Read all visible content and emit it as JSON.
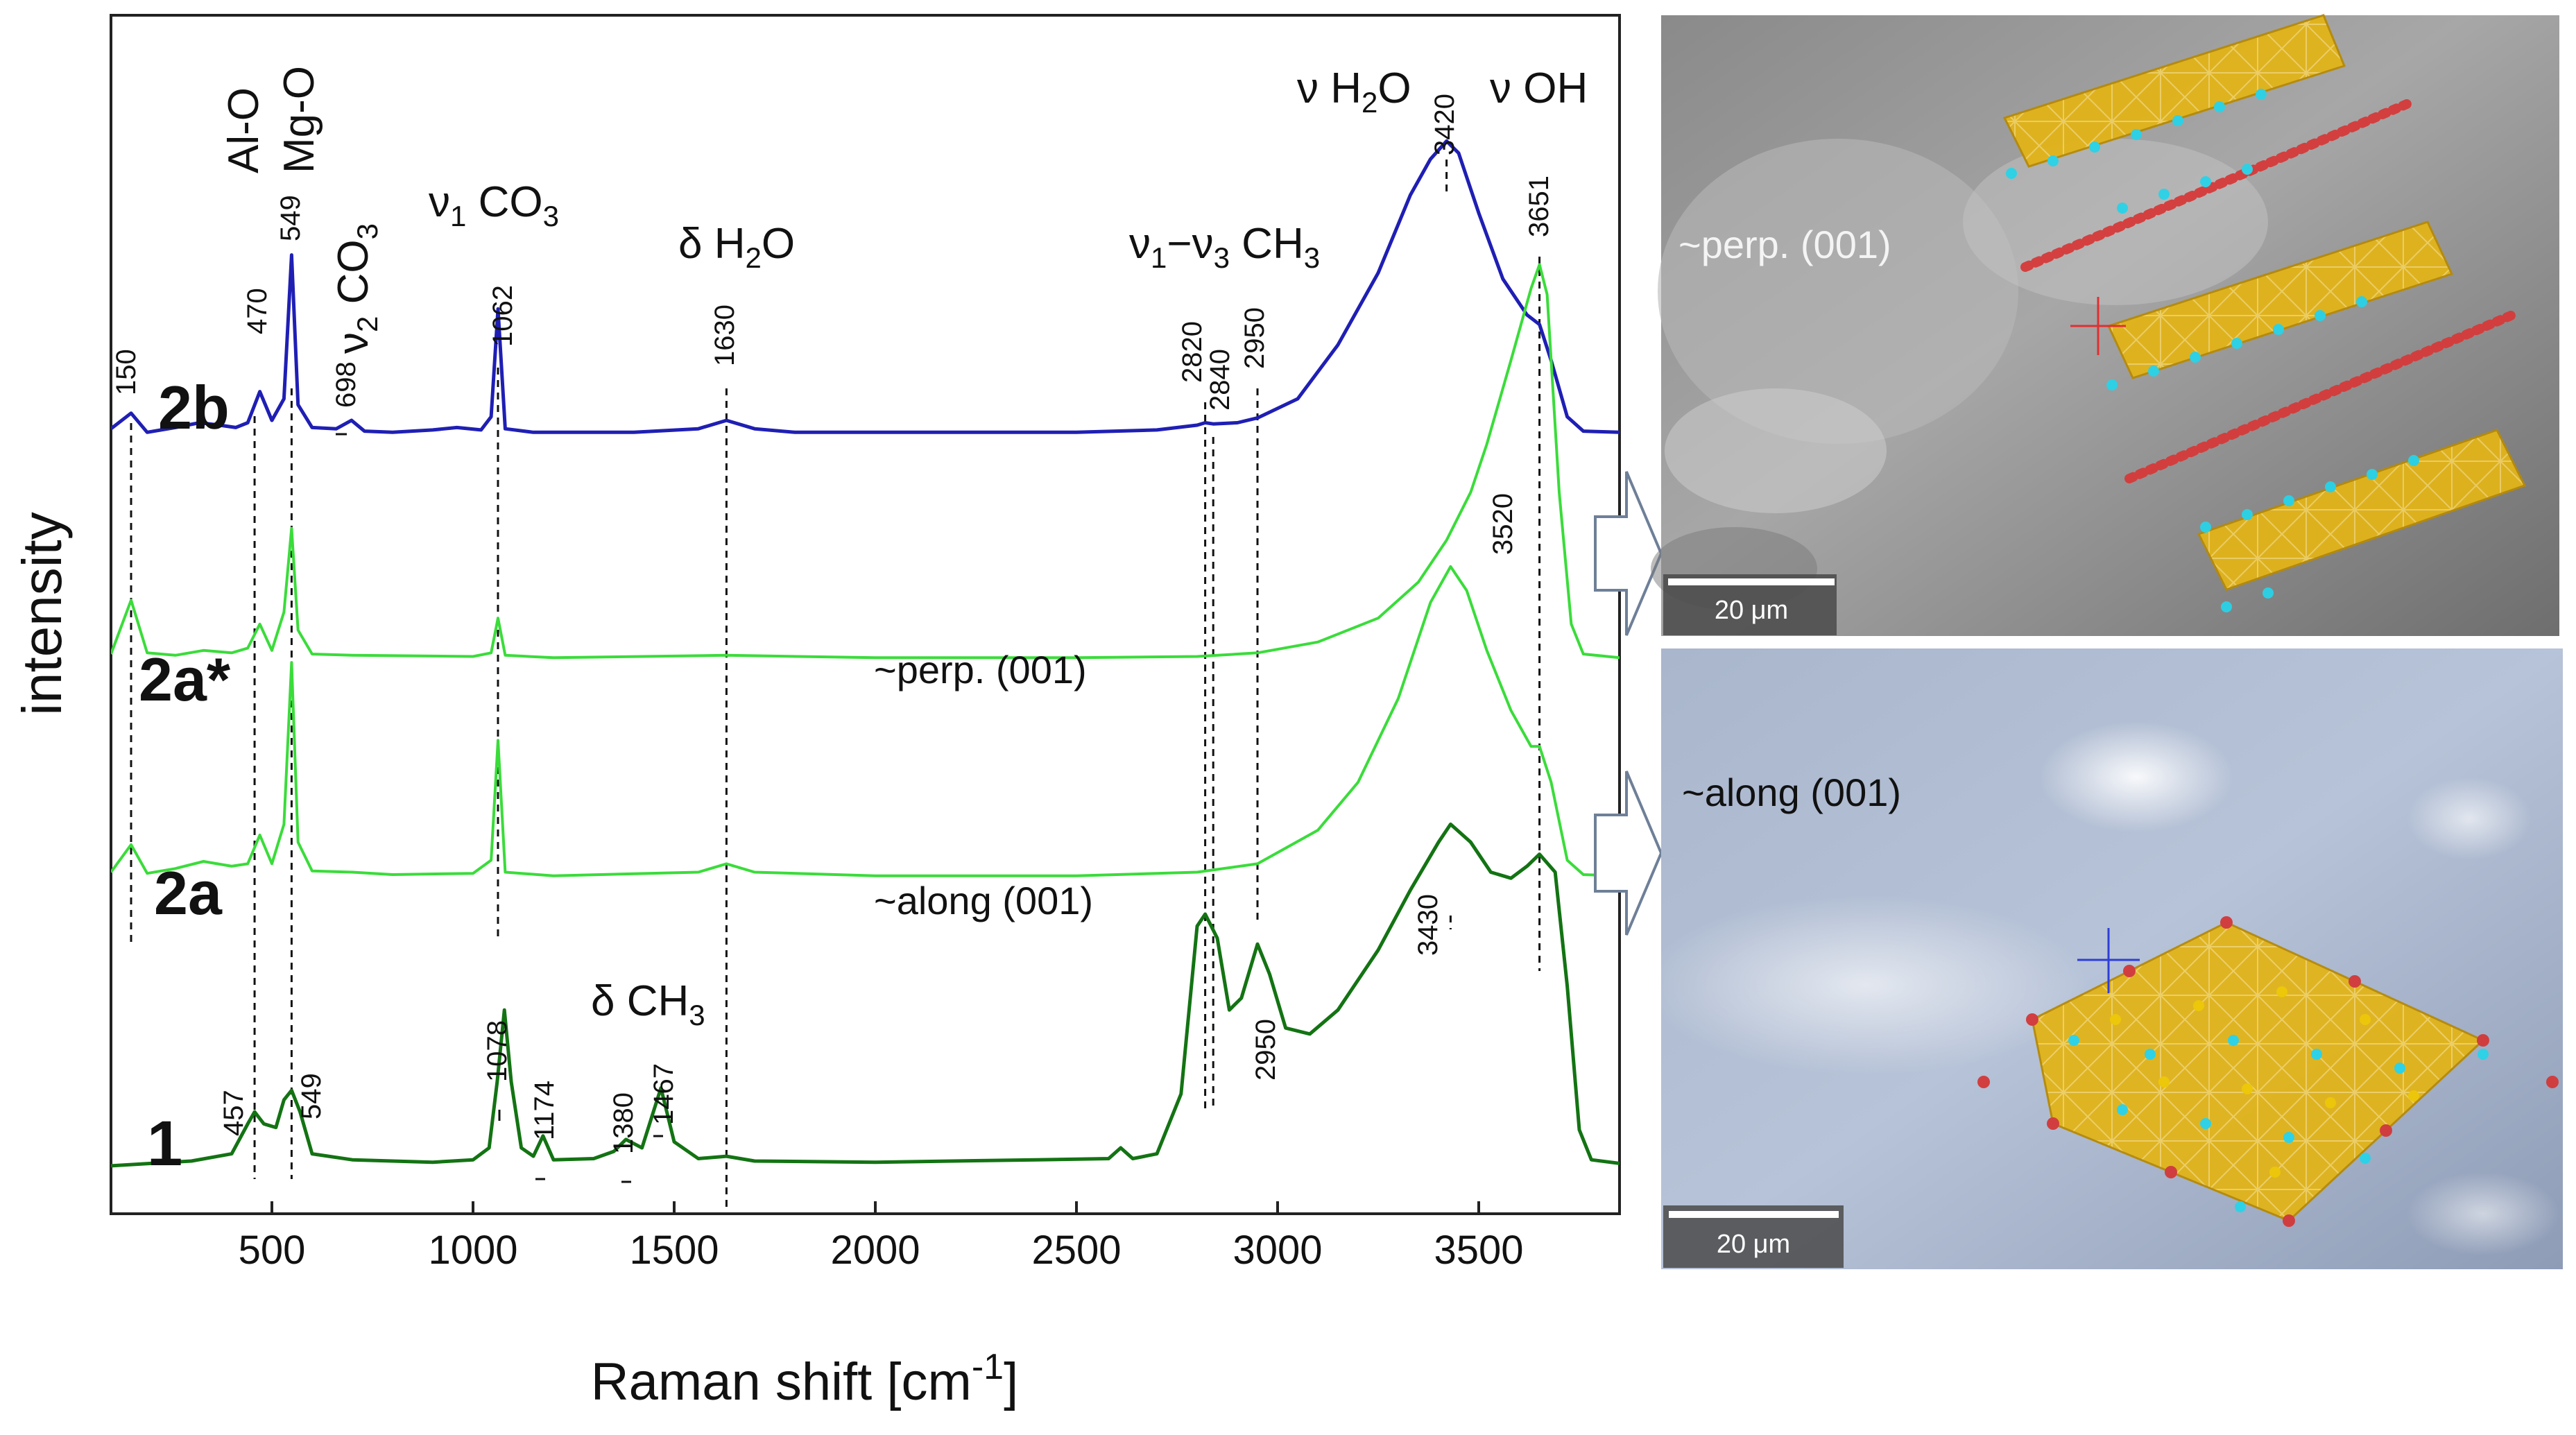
{
  "chart_data": {
    "type": "line",
    "xlabel": "Raman shift [cm",
    "xlabel_sup": "-1",
    "xlabel_close": "]",
    "ylabel": "intensity",
    "xlim": [
      100,
      3850
    ],
    "xticks": [
      500,
      1000,
      1500,
      2000,
      2500,
      3000,
      3500
    ],
    "grid": false,
    "series": [
      {
        "name": "2b",
        "color": "#1f1fb4",
        "baseline": 0.65,
        "width": 5,
        "points": [
          [
            100,
            0.05
          ],
          [
            150,
            0.18
          ],
          [
            190,
            0.02
          ],
          [
            260,
            0.06
          ],
          [
            320,
            0.1
          ],
          [
            370,
            0.08
          ],
          [
            410,
            0.06
          ],
          [
            440,
            0.1
          ],
          [
            470,
            0.36
          ],
          [
            500,
            0.12
          ],
          [
            530,
            0.3
          ],
          [
            549,
            1.5
          ],
          [
            565,
            0.25
          ],
          [
            600,
            0.06
          ],
          [
            660,
            0.05
          ],
          [
            698,
            0.12
          ],
          [
            730,
            0.03
          ],
          [
            800,
            0.02
          ],
          [
            900,
            0.04
          ],
          [
            960,
            0.06
          ],
          [
            1020,
            0.04
          ],
          [
            1045,
            0.15
          ],
          [
            1062,
            1.05
          ],
          [
            1080,
            0.05
          ],
          [
            1150,
            0.02
          ],
          [
            1400,
            0.02
          ],
          [
            1560,
            0.05
          ],
          [
            1630,
            0.12
          ],
          [
            1700,
            0.05
          ],
          [
            1800,
            0.02
          ],
          [
            2500,
            0.02
          ],
          [
            2700,
            0.04
          ],
          [
            2800,
            0.08
          ],
          [
            2820,
            0.1
          ],
          [
            2840,
            0.09
          ],
          [
            2900,
            0.1
          ],
          [
            2950,
            0.14
          ],
          [
            3050,
            0.3
          ],
          [
            3150,
            0.75
          ],
          [
            3250,
            1.35
          ],
          [
            3330,
            2.0
          ],
          [
            3380,
            2.3
          ],
          [
            3420,
            2.45
          ],
          [
            3450,
            2.35
          ],
          [
            3500,
            1.85
          ],
          [
            3560,
            1.3
          ],
          [
            3620,
            1.0
          ],
          [
            3651,
            0.92
          ],
          [
            3680,
            0.62
          ],
          [
            3720,
            0.15
          ],
          [
            3760,
            0.03
          ],
          [
            3850,
            0.02
          ]
        ]
      },
      {
        "name": "2a*",
        "color": "#3adc3a",
        "baseline": 0.462,
        "width": 4,
        "points": [
          [
            100,
            0.05
          ],
          [
            150,
            0.5
          ],
          [
            190,
            0.06
          ],
          [
            260,
            0.04
          ],
          [
            330,
            0.08
          ],
          [
            400,
            0.06
          ],
          [
            440,
            0.1
          ],
          [
            470,
            0.3
          ],
          [
            500,
            0.08
          ],
          [
            530,
            0.4
          ],
          [
            549,
            1.1
          ],
          [
            565,
            0.25
          ],
          [
            600,
            0.05
          ],
          [
            700,
            0.04
          ],
          [
            1000,
            0.03
          ],
          [
            1045,
            0.06
          ],
          [
            1062,
            0.35
          ],
          [
            1080,
            0.04
          ],
          [
            1200,
            0.02
          ],
          [
            1630,
            0.04
          ],
          [
            2000,
            0.02
          ],
          [
            2500,
            0.02
          ],
          [
            2800,
            0.03
          ],
          [
            2950,
            0.06
          ],
          [
            3100,
            0.15
          ],
          [
            3250,
            0.35
          ],
          [
            3350,
            0.65
          ],
          [
            3420,
            1.0
          ],
          [
            3480,
            1.4
          ],
          [
            3520,
            1.8
          ],
          [
            3580,
            2.5
          ],
          [
            3630,
            3.1
          ],
          [
            3651,
            3.3
          ],
          [
            3670,
            3.05
          ],
          [
            3700,
            1.4
          ],
          [
            3730,
            0.3
          ],
          [
            3760,
            0.05
          ],
          [
            3850,
            0.02
          ]
        ]
      },
      {
        "name": "2a",
        "color": "#3adc3a",
        "baseline": 0.28,
        "width": 4,
        "points": [
          [
            100,
            0.05
          ],
          [
            150,
            0.28
          ],
          [
            190,
            0.04
          ],
          [
            260,
            0.08
          ],
          [
            330,
            0.14
          ],
          [
            400,
            0.1
          ],
          [
            440,
            0.12
          ],
          [
            470,
            0.36
          ],
          [
            500,
            0.12
          ],
          [
            530,
            0.45
          ],
          [
            549,
            1.8
          ],
          [
            565,
            0.3
          ],
          [
            600,
            0.06
          ],
          [
            700,
            0.05
          ],
          [
            800,
            0.03
          ],
          [
            1000,
            0.04
          ],
          [
            1045,
            0.15
          ],
          [
            1062,
            1.15
          ],
          [
            1080,
            0.05
          ],
          [
            1200,
            0.02
          ],
          [
            1560,
            0.05
          ],
          [
            1630,
            0.12
          ],
          [
            1700,
            0.05
          ],
          [
            2000,
            0.02
          ],
          [
            2500,
            0.02
          ],
          [
            2800,
            0.05
          ],
          [
            2950,
            0.12
          ],
          [
            3100,
            0.4
          ],
          [
            3200,
            0.8
          ],
          [
            3300,
            1.5
          ],
          [
            3380,
            2.3
          ],
          [
            3430,
            2.6
          ],
          [
            3470,
            2.4
          ],
          [
            3520,
            1.9
          ],
          [
            3580,
            1.4
          ],
          [
            3630,
            1.1
          ],
          [
            3651,
            1.1
          ],
          [
            3680,
            0.8
          ],
          [
            3720,
            0.15
          ],
          [
            3760,
            0.03
          ],
          [
            3850,
            0.02
          ]
        ]
      },
      {
        "name": "1",
        "color": "#137313",
        "baseline": 0.04,
        "width": 5,
        "points": [
          [
            100,
            0.0
          ],
          [
            200,
            0.02
          ],
          [
            300,
            0.04
          ],
          [
            400,
            0.1
          ],
          [
            440,
            0.35
          ],
          [
            457,
            0.45
          ],
          [
            480,
            0.35
          ],
          [
            510,
            0.32
          ],
          [
            530,
            0.55
          ],
          [
            549,
            0.63
          ],
          [
            570,
            0.45
          ],
          [
            600,
            0.1
          ],
          [
            700,
            0.05
          ],
          [
            900,
            0.03
          ],
          [
            1000,
            0.05
          ],
          [
            1040,
            0.15
          ],
          [
            1060,
            0.7
          ],
          [
            1078,
            1.3
          ],
          [
            1095,
            0.7
          ],
          [
            1120,
            0.15
          ],
          [
            1150,
            0.08
          ],
          [
            1174,
            0.25
          ],
          [
            1200,
            0.05
          ],
          [
            1300,
            0.06
          ],
          [
            1350,
            0.12
          ],
          [
            1380,
            0.22
          ],
          [
            1420,
            0.15
          ],
          [
            1467,
            0.65
          ],
          [
            1500,
            0.2
          ],
          [
            1560,
            0.06
          ],
          [
            1630,
            0.08
          ],
          [
            1700,
            0.04
          ],
          [
            2000,
            0.03
          ],
          [
            2400,
            0.05
          ],
          [
            2580,
            0.06
          ],
          [
            2610,
            0.15
          ],
          [
            2640,
            0.06
          ],
          [
            2700,
            0.1
          ],
          [
            2760,
            0.6
          ],
          [
            2800,
            2.0
          ],
          [
            2820,
            2.1
          ],
          [
            2850,
            1.9
          ],
          [
            2880,
            1.3
          ],
          [
            2910,
            1.4
          ],
          [
            2950,
            1.85
          ],
          [
            2980,
            1.6
          ],
          [
            3020,
            1.15
          ],
          [
            3080,
            1.1
          ],
          [
            3150,
            1.3
          ],
          [
            3250,
            1.8
          ],
          [
            3330,
            2.3
          ],
          [
            3400,
            2.7
          ],
          [
            3430,
            2.85
          ],
          [
            3480,
            2.7
          ],
          [
            3530,
            2.45
          ],
          [
            3580,
            2.4
          ],
          [
            3620,
            2.5
          ],
          [
            3651,
            2.6
          ],
          [
            3690,
            2.45
          ],
          [
            3720,
            1.5
          ],
          [
            3750,
            0.3
          ],
          [
            3780,
            0.05
          ],
          [
            3850,
            0.02
          ]
        ]
      }
    ],
    "series_labels": [
      "2b",
      "2a*",
      "2a",
      "1"
    ],
    "band_labels": {
      "al_o": "Al-O",
      "mg_o": "Mg-O",
      "v2_co3": "ν",
      "v2_sub": "2",
      "v2_rest": " CO",
      "v2_sub3": "3",
      "v1_co3": "ν",
      "v1_sub": "1",
      "v1_rest": " CO",
      "v1_sub3": "3",
      "d_h2o": "δ H",
      "d_h2o_sub": "2",
      "d_h2o_rest": "O",
      "v13_ch3": "ν",
      "v13_sub1": "1",
      "v13_mid": "−ν",
      "v13_sub3": "3",
      "v13_rest": " CH",
      "v13_sub3b": "3",
      "v_h2o": "ν H",
      "v_h2o_sub": "2",
      "v_h2o_rest": "O",
      "v_oh": "ν OH",
      "d_ch3": "δ CH",
      "d_ch3_sub": "3"
    },
    "peak_labels": {
      "p150": "150",
      "p470": "470",
      "p549_top": "549",
      "p698": "698",
      "p1062": "1062",
      "p1630": "1630",
      "p2820": "2820",
      "p2840": "2840",
      "p2950_top": "2950",
      "p3420": "3420",
      "p3651": "3651",
      "p3520": "3520",
      "p3430": "3430",
      "p457": "457",
      "p549": "549",
      "p1078": "1078",
      "p1174": "1174",
      "p1380": "1380",
      "p1467": "1467",
      "p2950": "2950"
    },
    "annotations": {
      "perp": "~perp. (001)",
      "along": "~along (001)"
    },
    "dashed_lines_x": [
      150,
      457,
      549,
      1062,
      1630,
      2820,
      2840,
      2950,
      3430,
      3651
    ]
  },
  "micrographs": [
    {
      "label": "~perp. (001)",
      "scale": "20 μm"
    },
    {
      "label": "~along (001)",
      "scale": "20 μm"
    }
  ]
}
